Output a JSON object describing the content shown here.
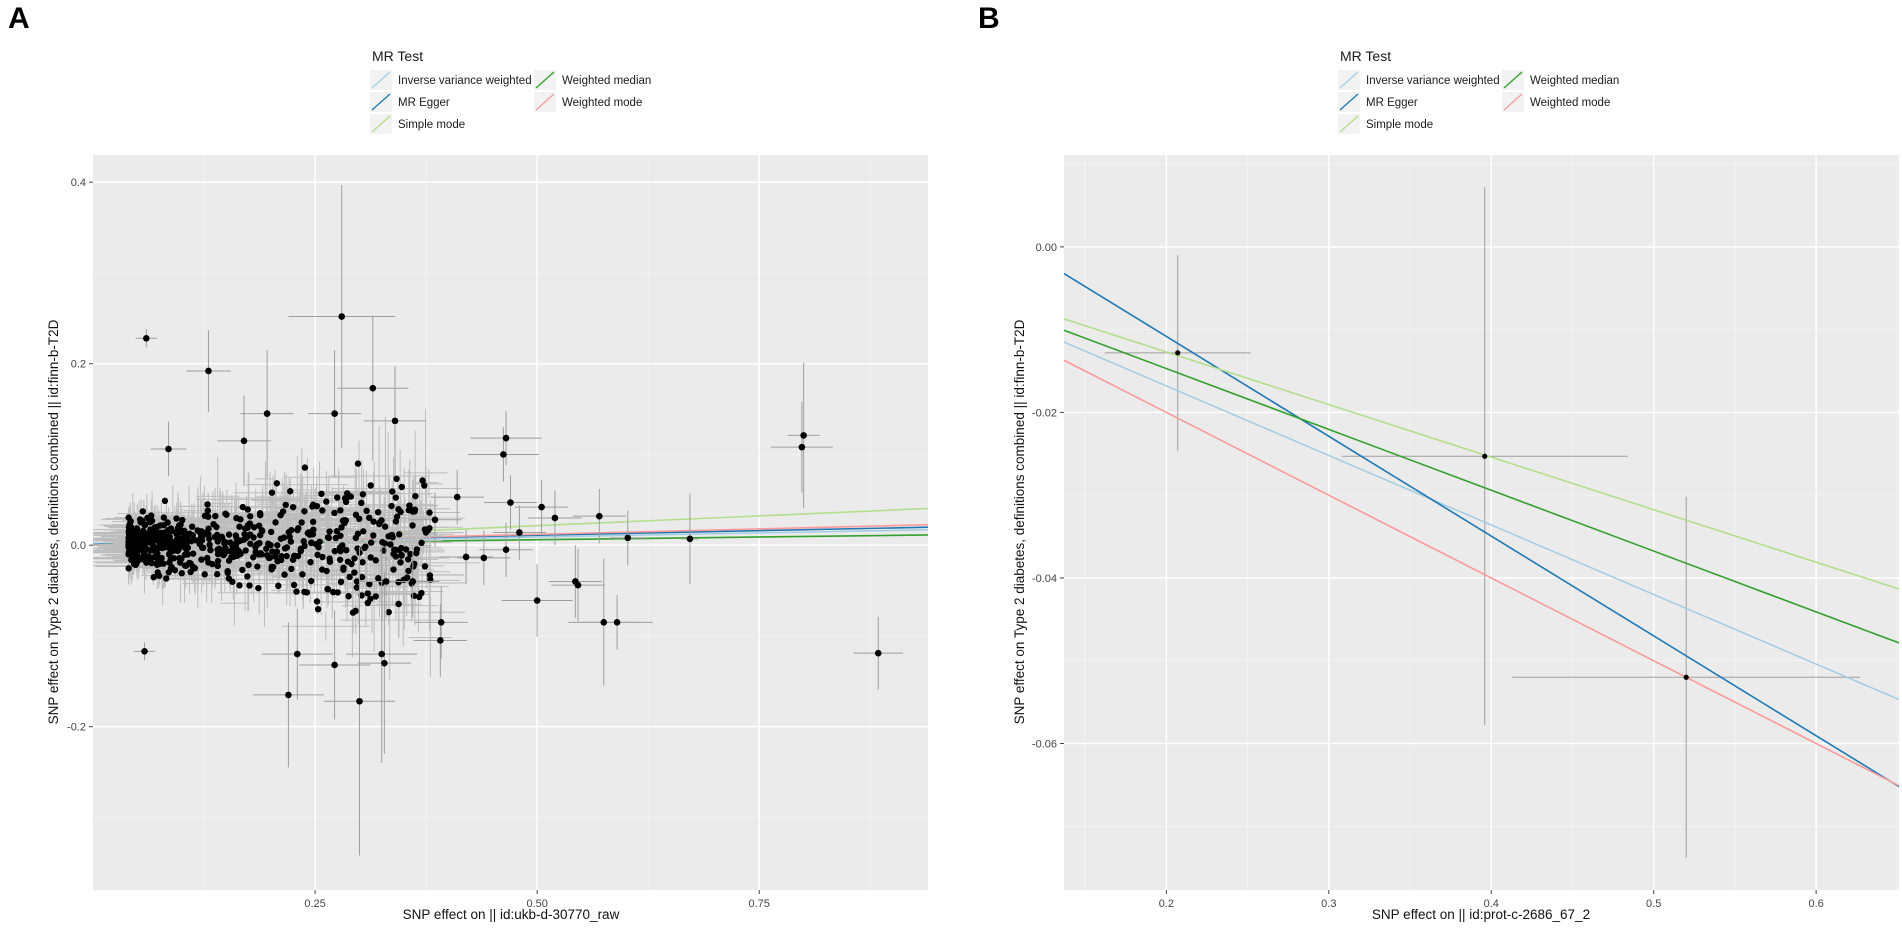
{
  "chart_data": [
    {
      "panel": "A",
      "type": "scatter",
      "title": "",
      "xlabel": "SNP effect on  || id:ukb-d-30770_raw",
      "ylabel": "SNP effect on Type 2 diabetes, definitions combined || id:finn-b-T2D",
      "xlim": [
        0.0,
        0.94
      ],
      "ylim": [
        -0.38,
        0.43
      ],
      "x_ticks": [
        0.25,
        0.5,
        0.75
      ],
      "x_tick_labels": [
        "0.25",
        "0.50",
        "0.75"
      ],
      "y_ticks": [
        -0.2,
        0.0,
        0.2,
        0.4
      ],
      "y_tick_labels": [
        "-0.2",
        "0.0",
        "0.2",
        "0.4"
      ],
      "grid": true,
      "legend": {
        "title": "MR Test",
        "position": "top",
        "entries": [
          {
            "name": "Inverse variance weighted",
            "color": "#a6cee3"
          },
          {
            "name": "MR Egger",
            "color": "#1f78b4"
          },
          {
            "name": "Simple mode",
            "color": "#b2df8a"
          },
          {
            "name": "Weighted median",
            "color": "#33a02c"
          },
          {
            "name": "Weighted mode",
            "color": "#fb9a99"
          }
        ]
      },
      "series": [
        {
          "name": "Inverse variance weighted",
          "intercept": 0.0,
          "slope": 0.018
        },
        {
          "name": "MR Egger",
          "intercept": 0.001,
          "slope": 0.02
        },
        {
          "name": "Simple mode",
          "intercept": 0.0,
          "slope": 0.043
        },
        {
          "name": "Weighted median",
          "intercept": 0.0,
          "slope": 0.012
        },
        {
          "name": "Weighted mode",
          "intercept": 0.0,
          "slope": 0.024
        }
      ],
      "points": [
        {
          "x": 0.06,
          "y": 0.228,
          "xe": 0.012,
          "ye": 0.01
        },
        {
          "x": 0.13,
          "y": 0.192,
          "xe": 0.025,
          "ye": 0.045
        },
        {
          "x": 0.28,
          "y": 0.252,
          "xe": 0.06,
          "ye": 0.145
        },
        {
          "x": 0.196,
          "y": 0.145,
          "xe": 0.03,
          "ye": 0.07
        },
        {
          "x": 0.272,
          "y": 0.145,
          "xe": 0.03,
          "ye": 0.07
        },
        {
          "x": 0.315,
          "y": 0.173,
          "xe": 0.04,
          "ye": 0.08
        },
        {
          "x": 0.34,
          "y": 0.137,
          "xe": 0.035,
          "ye": 0.06
        },
        {
          "x": 0.085,
          "y": 0.106,
          "xe": 0.02,
          "ye": 0.03
        },
        {
          "x": 0.17,
          "y": 0.115,
          "xe": 0.03,
          "ye": 0.05
        },
        {
          "x": 0.465,
          "y": 0.118,
          "xe": 0.04,
          "ye": 0.03
        },
        {
          "x": 0.462,
          "y": 0.1,
          "xe": 0.04,
          "ye": 0.03
        },
        {
          "x": 0.8,
          "y": 0.121,
          "xe": 0.018,
          "ye": 0.08
        },
        {
          "x": 0.798,
          "y": 0.108,
          "xe": 0.035,
          "ye": 0.05
        },
        {
          "x": 0.884,
          "y": -0.119,
          "xe": 0.028,
          "ye": 0.04
        },
        {
          "x": 0.058,
          "y": -0.117,
          "xe": 0.012,
          "ye": 0.01
        },
        {
          "x": 0.22,
          "y": -0.165,
          "xe": 0.04,
          "ye": 0.08
        },
        {
          "x": 0.3,
          "y": -0.172,
          "xe": 0.04,
          "ye": 0.17
        },
        {
          "x": 0.325,
          "y": -0.12,
          "xe": 0.04,
          "ye": 0.12
        },
        {
          "x": 0.328,
          "y": -0.13,
          "xe": 0.03,
          "ye": 0.1
        },
        {
          "x": 0.392,
          "y": -0.085,
          "xe": 0.03,
          "ye": 0.04
        },
        {
          "x": 0.391,
          "y": -0.105,
          "xe": 0.03,
          "ye": 0.04
        },
        {
          "x": 0.272,
          "y": -0.132,
          "xe": 0.04,
          "ye": 0.06
        },
        {
          "x": 0.23,
          "y": -0.12,
          "xe": 0.04,
          "ye": 0.05
        },
        {
          "x": 0.5,
          "y": -0.061,
          "xe": 0.04,
          "ye": 0.04
        },
        {
          "x": 0.543,
          "y": -0.04,
          "xe": 0.03,
          "ye": 0.04
        },
        {
          "x": 0.546,
          "y": -0.044,
          "xe": 0.03,
          "ye": 0.04
        },
        {
          "x": 0.575,
          "y": -0.085,
          "xe": 0.04,
          "ye": 0.07
        },
        {
          "x": 0.59,
          "y": -0.085,
          "xe": 0.04,
          "ye": 0.03
        },
        {
          "x": 0.57,
          "y": 0.032,
          "xe": 0.03,
          "ye": 0.03
        },
        {
          "x": 0.602,
          "y": 0.008,
          "xe": 0.02,
          "ye": 0.03
        },
        {
          "x": 0.672,
          "y": 0.007,
          "xe": 0.01,
          "ye": 0.05
        },
        {
          "x": 0.465,
          "y": -0.005,
          "xe": 0.03,
          "ye": 0.03
        },
        {
          "x": 0.44,
          "y": -0.014,
          "xe": 0.03,
          "ye": 0.03
        },
        {
          "x": 0.42,
          "y": -0.013,
          "xe": 0.03,
          "ye": 0.03
        },
        {
          "x": 0.48,
          "y": 0.014,
          "xe": 0.03,
          "ye": 0.03
        },
        {
          "x": 0.505,
          "y": 0.042,
          "xe": 0.03,
          "ye": 0.03
        },
        {
          "x": 0.47,
          "y": 0.047,
          "xe": 0.03,
          "ye": 0.03
        },
        {
          "x": 0.41,
          "y": 0.053,
          "xe": 0.03,
          "ye": 0.03
        },
        {
          "x": 0.385,
          "y": 0.028,
          "xe": 0.03,
          "ye": 0.03
        },
        {
          "x": 0.52,
          "y": 0.03,
          "xe": 0.03,
          "ye": 0.03
        },
        {
          "x": 0.36,
          "y": -0.04,
          "xe": 0.03,
          "ye": 0.04
        },
        {
          "x": 0.33,
          "y": -0.04,
          "xe": 0.03,
          "ye": 0.04
        }
      ]
    },
    {
      "panel": "B",
      "type": "scatter",
      "title": "",
      "xlabel": "SNP effect on  || id:prot-c-2686_67_2",
      "ylabel": "SNP effect on Type 2 diabetes, definitions combined || id:finn-b-T2D",
      "xlim": [
        0.137,
        0.651
      ],
      "ylim": [
        -0.0777,
        0.0111
      ],
      "x_ticks": [
        0.2,
        0.3,
        0.4,
        0.5,
        0.6
      ],
      "x_tick_labels": [
        "0.2",
        "0.3",
        "0.4",
        "0.5",
        "0.6"
      ],
      "y_ticks": [
        -0.06,
        -0.04,
        -0.02,
        0.0
      ],
      "y_tick_labels": [
        "-0.06",
        "-0.04",
        "-0.02",
        "0.00"
      ],
      "grid": true,
      "legend": {
        "title": "MR Test",
        "position": "top",
        "entries": [
          {
            "name": "Inverse variance weighted",
            "color": "#a6cee3"
          },
          {
            "name": "MR Egger",
            "color": "#1f78b4"
          },
          {
            "name": "Simple mode",
            "color": "#b2df8a"
          },
          {
            "name": "Weighted median",
            "color": "#33a02c"
          },
          {
            "name": "Weighted mode",
            "color": "#fb9a99"
          }
        ]
      },
      "series": [
        {
          "name": "Inverse variance weighted",
          "intercept": 0.0,
          "slope": -0.084
        },
        {
          "name": "MR Egger",
          "intercept": 0.0133,
          "slope": -0.1206
        },
        {
          "name": "Simple mode",
          "intercept": 0.0,
          "slope": -0.0635
        },
        {
          "name": "Weighted median",
          "intercept": 0.0,
          "slope": -0.0735
        },
        {
          "name": "Weighted mode",
          "intercept": 0.0,
          "slope": -0.1
        }
      ],
      "points": [
        {
          "x": 0.207,
          "y": -0.0128,
          "xe": 0.045,
          "ye": 0.0118
        },
        {
          "x": 0.396,
          "y": -0.0253,
          "xe": 0.088,
          "ye": 0.0325
        },
        {
          "x": 0.52,
          "y": -0.052,
          "xe": 0.107,
          "ye": 0.0218
        }
      ]
    }
  ]
}
